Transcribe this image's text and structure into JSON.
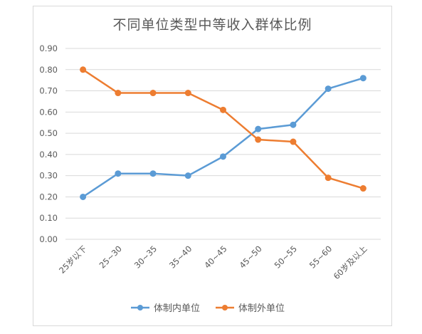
{
  "chart_data": {
    "type": "line",
    "title": "不同单位类型中等收入群体比例",
    "xlabel": "",
    "ylabel": "",
    "categories": [
      "25岁以下",
      "25~30",
      "30~35",
      "35~40",
      "40~45",
      "45~50",
      "50~55",
      "55~60",
      "60岁及以上"
    ],
    "series": [
      {
        "name": "体制内单位",
        "color": "#5b9bd5",
        "values": [
          0.2,
          0.31,
          0.31,
          0.3,
          0.39,
          0.52,
          0.54,
          0.71,
          0.76
        ]
      },
      {
        "name": "体制外单位",
        "color": "#ed7d31",
        "values": [
          0.8,
          0.69,
          0.69,
          0.69,
          0.61,
          0.47,
          0.46,
          0.29,
          0.24
        ]
      }
    ],
    "ylim": [
      0,
      0.9
    ],
    "yticks": [
      "0.00",
      "0.10",
      "0.20",
      "0.30",
      "0.40",
      "0.50",
      "0.60",
      "0.70",
      "0.80",
      "0.90"
    ],
    "grid": true,
    "legend_position": "bottom"
  }
}
